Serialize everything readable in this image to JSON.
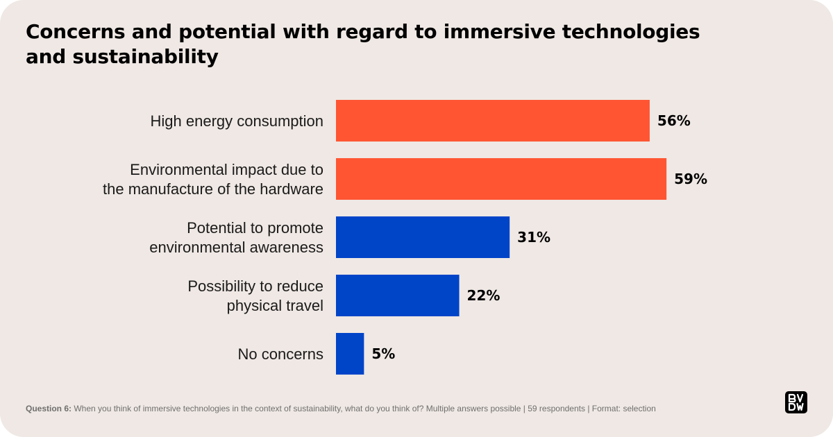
{
  "title": {
    "line1": "Concerns and potential with regard to immersive technologies",
    "line2": "and sustainability"
  },
  "chart_data": {
    "type": "bar",
    "orientation": "horizontal",
    "title": "Concerns and potential with regard to immersive technologies and sustainability",
    "categories": [
      [
        "High energy consumption"
      ],
      [
        "Environmental impact due to",
        "the manufacture of the hardware"
      ],
      [
        "Potential to promote",
        "environmental awareness"
      ],
      [
        "Possibility to reduce",
        "physical travel"
      ],
      [
        "No concerns"
      ]
    ],
    "values": [
      56,
      59,
      31,
      22,
      5
    ],
    "value_labels": [
      "56%",
      "59%",
      "31%",
      "22%",
      "5%"
    ],
    "colors": [
      "#ff5533",
      "#ff5533",
      "#0044c8",
      "#0044c8",
      "#0044c8"
    ],
    "unit": "%",
    "xlim": [
      0,
      100
    ],
    "grid": false,
    "legend": "none"
  },
  "footnote": {
    "label": "Question 6:",
    "text": "When you think of immersive technologies in the context of sustainability, what do you think of? Multiple answers possible | 59 respondents | Format: selection"
  },
  "logo": {
    "icon": "bvdw-logo-icon",
    "alt": "BVDW"
  },
  "colors": {
    "background": "#efe8e4",
    "concern": "#ff5533",
    "potential": "#0044c8"
  }
}
